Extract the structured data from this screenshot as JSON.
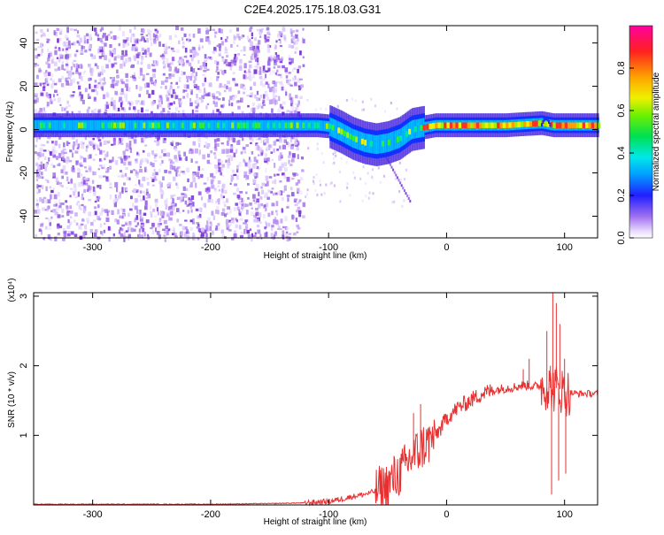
{
  "title": "C2E4.2025.175.18.03.G31",
  "chart_data": [
    {
      "type": "heatmap",
      "title": "",
      "xlabel": "Height of straight line (km)",
      "ylabel": "Frequency (Hz)",
      "xlim": [
        -350,
        128
      ],
      "ylim": [
        -50,
        48
      ],
      "x_ticks": [
        -300,
        -200,
        -100,
        0,
        100
      ],
      "x_tick_labels": [
        "-300",
        "-200",
        "-100",
        "0",
        "100"
      ],
      "y_ticks": [
        -40,
        -20,
        0,
        20,
        40
      ],
      "y_tick_labels": [
        "-40",
        "-20",
        "0",
        "20",
        "40"
      ],
      "colorbar": {
        "label": "Normalized spectral amplitude",
        "ticks": [
          0.0,
          0.2,
          0.4,
          0.6,
          0.8
        ],
        "tick_labels": [
          "0.0",
          "0.2",
          "0.4",
          "0.6",
          "0.8"
        ],
        "range": [
          0,
          1
        ]
      },
      "dominant_band": {
        "x": [
          -350,
          -200,
          -130,
          -110,
          -100,
          -90,
          -80,
          -70,
          -60,
          -50,
          -40,
          -30,
          -20,
          -10,
          0,
          20,
          50,
          80,
          90,
          128
        ],
        "frequency": [
          2,
          2,
          2,
          2,
          1.5,
          -1,
          -4,
          -6,
          -7,
          -6,
          -4,
          0,
          1,
          2,
          2,
          2,
          2,
          3,
          2,
          2
        ]
      },
      "grid": false
    },
    {
      "type": "line",
      "title": "",
      "xlabel": "Height of straight line (km)",
      "ylabel": "SNR (10 * v/v)",
      "y_multiplier_label": "(x10⁴)",
      "xlim": [
        -350,
        128
      ],
      "ylim": [
        0,
        3.05
      ],
      "x_ticks": [
        -300,
        -200,
        -100,
        0,
        100
      ],
      "x_tick_labels": [
        "-300",
        "-200",
        "-100",
        "0",
        "100"
      ],
      "y_ticks": [
        1,
        2,
        3
      ],
      "y_tick_labels": [
        "1",
        "2",
        "3"
      ],
      "series": [
        {
          "color": "#e83030",
          "x": [
            -350,
            -300,
            -250,
            -200,
            -150,
            -120,
            -100,
            -90,
            -80,
            -70,
            -60,
            -50,
            -45,
            -40,
            -35,
            -30,
            -25,
            -20,
            -15,
            -10,
            -5,
            0,
            10,
            20,
            30,
            40,
            50,
            60,
            65,
            70,
            75,
            80,
            85,
            88,
            90,
            92,
            95,
            100,
            110,
            120,
            128
          ],
          "y": [
            0.01,
            0.01,
            0.01,
            0.01,
            0.02,
            0.03,
            0.05,
            0.08,
            0.12,
            0.15,
            0.2,
            0.28,
            0.38,
            0.45,
            0.55,
            0.68,
            0.75,
            0.85,
            0.9,
            1.0,
            1.1,
            1.25,
            1.4,
            1.5,
            1.6,
            1.65,
            1.68,
            1.7,
            1.72,
            1.72,
            1.7,
            1.72,
            1.7,
            1.68,
            1.65,
            1.68,
            1.68,
            1.62,
            1.6,
            1.6,
            1.6
          ]
        }
      ],
      "spikes": [
        {
          "x": -28,
          "y": 1.32
        },
        {
          "x": -22,
          "y": 1.45
        },
        {
          "x": 65,
          "y": 1.95
        },
        {
          "x": 70,
          "y": 2.1
        },
        {
          "x": 85,
          "y": 2.5
        },
        {
          "x": 88,
          "y": 2.0
        },
        {
          "x": 90,
          "y": 3.05
        },
        {
          "x": 93,
          "y": 2.9
        },
        {
          "x": 96,
          "y": 2.6
        },
        {
          "x": 100,
          "y": 2.1
        }
      ],
      "dips": [
        {
          "x": 89,
          "y": 0.15
        },
        {
          "x": 95,
          "y": 0.35
        },
        {
          "x": 101,
          "y": 0.45
        }
      ],
      "grid": false
    }
  ]
}
